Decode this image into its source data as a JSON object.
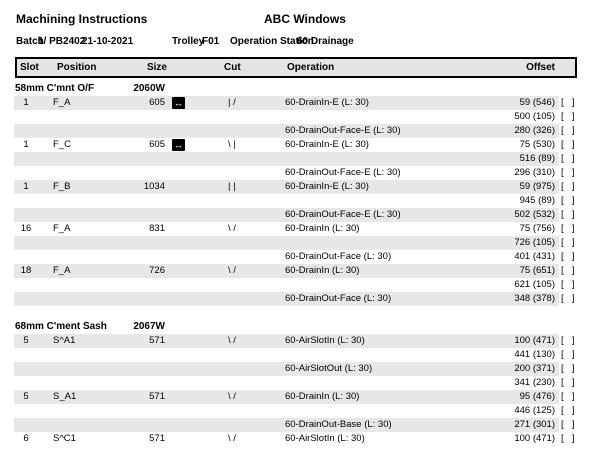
{
  "header": {
    "title": "Machining Instructions",
    "company": "ABC Windows",
    "batch_label": "Batch",
    "batch_value": "1/ PB2402",
    "batch_date": "21-10-2021",
    "trolley_label": "Trolley",
    "trolley_value": "F01",
    "station_label": "Operation Station",
    "station_value": "60 Drainage"
  },
  "icons": {
    "flip_arrow": "↔"
  },
  "table": {
    "columns": [
      "Slot",
      "Position",
      "Size",
      "Cut",
      "Operation",
      "Offset"
    ],
    "checkbox_label": "[  ]",
    "sections": [
      {
        "profile": "58mm C'mnt O/F",
        "profile_code": "2060W",
        "rows": [
          {
            "slot": "1",
            "position": "F_A",
            "size": "605",
            "flip": true,
            "cut": "| /",
            "operation": "60-DrainIn-E (L: 30)",
            "offset": "59 (546)"
          },
          {
            "slot": "",
            "position": "",
            "size": "",
            "flip": false,
            "cut": "",
            "operation": "",
            "offset": "500 (105)"
          },
          {
            "slot": "",
            "position": "",
            "size": "",
            "flip": false,
            "cut": "",
            "operation": "60-DrainOut-Face-E (L: 30)",
            "offset": "280 (326)"
          },
          {
            "slot": "1",
            "position": "F_C",
            "size": "605",
            "flip": true,
            "cut": "\\ |",
            "operation": "60-DrainIn-E (L: 30)",
            "offset": "75 (530)"
          },
          {
            "slot": "",
            "position": "",
            "size": "",
            "flip": false,
            "cut": "",
            "operation": "",
            "offset": "516 (89)"
          },
          {
            "slot": "",
            "position": "",
            "size": "",
            "flip": false,
            "cut": "",
            "operation": "60-DrainOut-Face-E (L: 30)",
            "offset": "296 (310)"
          },
          {
            "slot": "1",
            "position": "F_B",
            "size": "1034",
            "flip": false,
            "cut": "| |",
            "operation": "60-DrainIn-E (L: 30)",
            "offset": "59 (975)"
          },
          {
            "slot": "",
            "position": "",
            "size": "",
            "flip": false,
            "cut": "",
            "operation": "",
            "offset": "945 (89)"
          },
          {
            "slot": "",
            "position": "",
            "size": "",
            "flip": false,
            "cut": "",
            "operation": "60-DrainOut-Face-E (L: 30)",
            "offset": "502 (532)"
          },
          {
            "slot": "16",
            "position": "F_A",
            "size": "831",
            "flip": false,
            "cut": "\\ /",
            "operation": "60-DrainIn (L: 30)",
            "offset": "75 (756)"
          },
          {
            "slot": "",
            "position": "",
            "size": "",
            "flip": false,
            "cut": "",
            "operation": "",
            "offset": "726 (105)"
          },
          {
            "slot": "",
            "position": "",
            "size": "",
            "flip": false,
            "cut": "",
            "operation": "60-DrainOut-Face (L: 30)",
            "offset": "401 (431)"
          },
          {
            "slot": "18",
            "position": "F_A",
            "size": "726",
            "flip": false,
            "cut": "\\ /",
            "operation": "60-DrainIn (L: 30)",
            "offset": "75 (651)"
          },
          {
            "slot": "",
            "position": "",
            "size": "",
            "flip": false,
            "cut": "",
            "operation": "",
            "offset": "621 (105)"
          },
          {
            "slot": "",
            "position": "",
            "size": "",
            "flip": false,
            "cut": "",
            "operation": "60-DrainOut-Face (L: 30)",
            "offset": "348 (378)"
          }
        ]
      },
      {
        "profile": "68mm C'ment Sash",
        "profile_code": "2067W",
        "rows": [
          {
            "slot": "5",
            "position": "S^A1",
            "size": "571",
            "flip": false,
            "cut": "\\ /",
            "operation": "60-AirSlotIn (L: 30)",
            "offset": "100 (471)"
          },
          {
            "slot": "",
            "position": "",
            "size": "",
            "flip": false,
            "cut": "",
            "operation": "",
            "offset": "441 (130)"
          },
          {
            "slot": "",
            "position": "",
            "size": "",
            "flip": false,
            "cut": "",
            "operation": "60-AirSlotOut (L: 30)",
            "offset": "200 (371)"
          },
          {
            "slot": "",
            "position": "",
            "size": "",
            "flip": false,
            "cut": "",
            "operation": "",
            "offset": "341 (230)"
          },
          {
            "slot": "5",
            "position": "S_A1",
            "size": "571",
            "flip": false,
            "cut": "\\ /",
            "operation": "60-DrainIn (L: 30)",
            "offset": "95 (476)"
          },
          {
            "slot": "",
            "position": "",
            "size": "",
            "flip": false,
            "cut": "",
            "operation": "",
            "offset": "446 (125)"
          },
          {
            "slot": "",
            "position": "",
            "size": "",
            "flip": false,
            "cut": "",
            "operation": "60-DrainOut-Base (L: 30)",
            "offset": "271 (301)"
          },
          {
            "slot": "6",
            "position": "S^C1",
            "size": "571",
            "flip": false,
            "cut": "\\ /",
            "operation": "60-AirSlotIn (L: 30)",
            "offset": "100 (471)"
          }
        ]
      }
    ]
  }
}
